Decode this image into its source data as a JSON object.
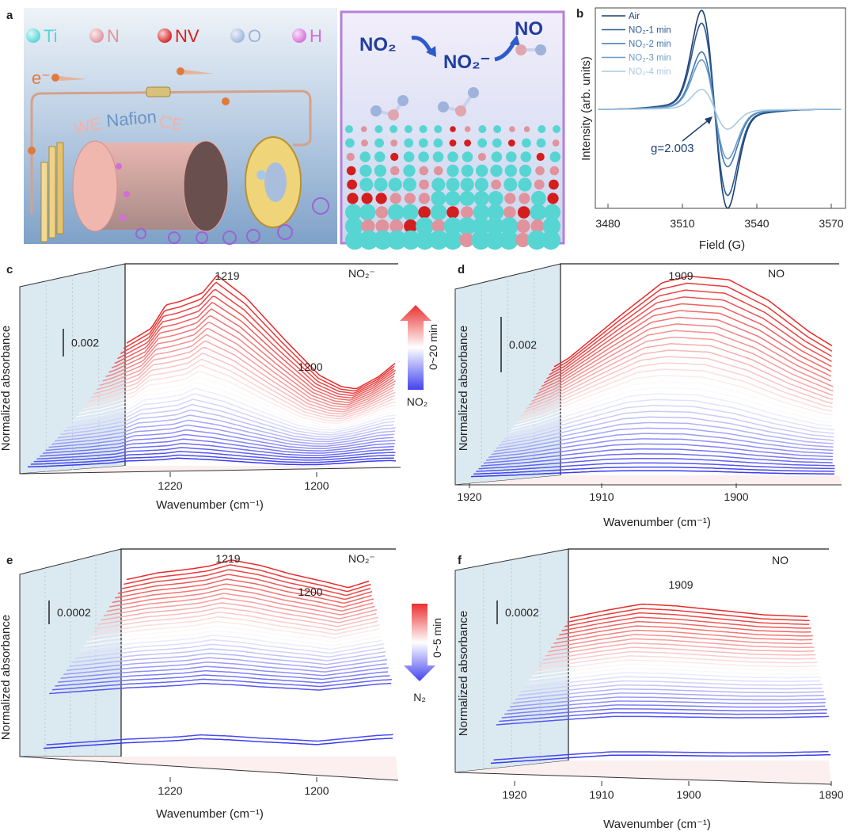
{
  "panel_labels": [
    "a",
    "b",
    "c",
    "d",
    "e",
    "f"
  ],
  "panel_a": {
    "legend": [
      {
        "symbol": "Ti",
        "color": "#4fd6d6"
      },
      {
        "symbol": "N",
        "color": "#e0939c"
      },
      {
        "symbol": "NV",
        "color": "#d81e1e"
      },
      {
        "symbol": "O",
        "color": "#9db3dc"
      },
      {
        "symbol": "H",
        "color": "#d66bd9"
      }
    ],
    "electron": "e⁻",
    "cell_labels": {
      "we": "WE",
      "nafion": "Nafion",
      "ce": "CE"
    },
    "scheme": {
      "reactant": "NO₂",
      "intermediate": "NO₂⁻",
      "product": "NO"
    }
  },
  "chart_data": [
    {
      "panel": "b",
      "type": "line",
      "xlabel": "Field (G)",
      "ylabel": "Intensity (arb. units)",
      "xlim": [
        3475,
        3575
      ],
      "xticks": [
        3480,
        3510,
        3540,
        3570
      ],
      "grid": false,
      "legend_position": "top-left",
      "annotation": "g=2.003",
      "center_field": 3523,
      "series": [
        {
          "name": "Air",
          "relative_amplitude": 1.0,
          "color": "#1d3f72"
        },
        {
          "name": "NO₂-1 min",
          "relative_amplitude": 0.87,
          "color": "#2b5a93"
        },
        {
          "name": "NO₂-2 min",
          "relative_amplitude": 0.58,
          "color": "#3f78b0"
        },
        {
          "name": "NO₂-3 min",
          "relative_amplitude": 0.5,
          "color": "#6a9cc8"
        },
        {
          "name": "NO₂-4 min",
          "relative_amplitude": 0.2,
          "color": "#a9c9e4"
        }
      ]
    },
    {
      "panel": "c",
      "type": "line",
      "style": "waterfall",
      "xlabel": "Wavenumber (cm⁻¹)",
      "ylabel": "Normalized absorbance",
      "xticks": [
        1220,
        1200
      ],
      "peak_labels": [
        "1219",
        "1200"
      ],
      "species_label": "NO₂⁻",
      "scale_bar": "0.002",
      "time_legend": "0~20 min",
      "gas_label": "NO₂",
      "final_spectrum": [
        [
          1238,
          0.25
        ],
        [
          1232,
          0.4
        ],
        [
          1228,
          0.55
        ],
        [
          1226,
          0.75
        ],
        [
          1224,
          0.78
        ],
        [
          1221,
          0.85
        ],
        [
          1219,
          1.0
        ],
        [
          1215,
          0.8
        ],
        [
          1210,
          0.45
        ],
        [
          1205,
          0.12
        ],
        [
          1202,
          0.02
        ],
        [
          1200,
          0
        ],
        [
          1197,
          0.1
        ],
        [
          1193,
          0.3
        ],
        [
          1190,
          0.35
        ],
        [
          1188,
          0.25
        ]
      ]
    },
    {
      "panel": "d",
      "type": "line",
      "style": "waterfall",
      "xlabel": "Wavenumber (cm⁻¹)",
      "ylabel": "Normalized absorbance",
      "xticks": [
        1920,
        1910,
        1900
      ],
      "peak_labels": [
        "1909"
      ],
      "species_label": "NO",
      "scale_bar": "0.002",
      "final_spectrum": [
        [
          1921,
          0.1
        ],
        [
          1917,
          0.35
        ],
        [
          1913,
          0.7
        ],
        [
          1910,
          0.95
        ],
        [
          1908,
          1.0
        ],
        [
          1905,
          0.97
        ],
        [
          1902,
          0.8
        ],
        [
          1899,
          0.55
        ],
        [
          1896,
          0.35
        ],
        [
          1893,
          0.25
        ]
      ]
    },
    {
      "panel": "e",
      "type": "line",
      "style": "waterfall",
      "xlabel": "Wavenumber (cm⁻¹)",
      "ylabel": "Normalized absorbance",
      "xticks": [
        1220,
        1200
      ],
      "peak_labels": [
        "1219",
        "1200"
      ],
      "species_label": "NO₂⁻",
      "scale_bar": "0.0002",
      "time_legend": "0~5 min",
      "gas_label": "N₂",
      "final_spectrum": [
        [
          1238,
          0.5
        ],
        [
          1232,
          0.65
        ],
        [
          1226,
          0.8
        ],
        [
          1222,
          0.85
        ],
        [
          1219,
          0.9
        ],
        [
          1216,
          1.0
        ],
        [
          1212,
          0.9
        ],
        [
          1208,
          0.75
        ],
        [
          1203,
          0.6
        ],
        [
          1200,
          0.5
        ],
        [
          1196,
          0.65
        ],
        [
          1192,
          0.8
        ],
        [
          1189,
          0.85
        ]
      ]
    },
    {
      "panel": "f",
      "type": "line",
      "style": "waterfall",
      "xlabel": "Wavenumber (cm⁻¹)",
      "ylabel": "Normalized absorbance",
      "xticks": [
        1920,
        1910,
        1900,
        1890
      ],
      "peak_labels": [
        "1909"
      ],
      "species_label": "NO",
      "scale_bar": "0.0002",
      "final_spectrum": [
        [
          1923,
          0.6
        ],
        [
          1918,
          0.75
        ],
        [
          1913,
          0.9
        ],
        [
          1909,
          1.0
        ],
        [
          1905,
          0.95
        ],
        [
          1900,
          0.85
        ],
        [
          1895,
          0.75
        ],
        [
          1890,
          0.7
        ]
      ]
    }
  ],
  "colors": {
    "early": "#3b3bf0",
    "middle": "#ffffff",
    "late": "#e82a2a"
  }
}
